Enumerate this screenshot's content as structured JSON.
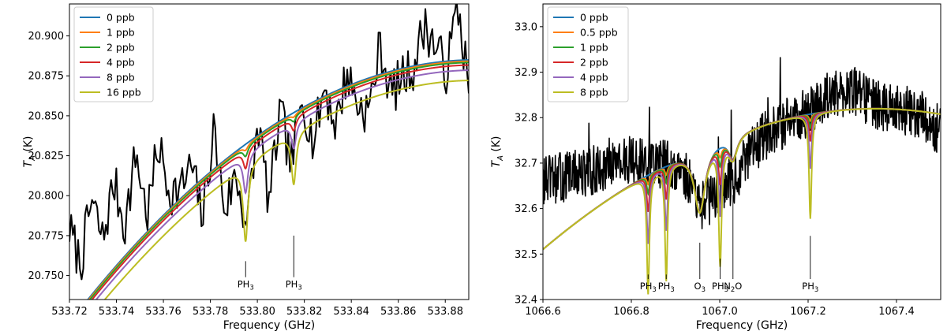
{
  "chart_data": [
    {
      "type": "line",
      "xlabel": "Frequency (GHz)",
      "ylabel_main": "T",
      "ylabel_sub": "A",
      "ylabel_unit": " (K)",
      "xlim": [
        533.72,
        533.89
      ],
      "ylim": [
        20.735,
        20.92
      ],
      "xticks": [
        533.72,
        533.74,
        533.76,
        533.78,
        533.8,
        533.82,
        533.84,
        533.86,
        533.88
      ],
      "xtick_labels": [
        "533.72",
        "533.74",
        "533.76",
        "533.78",
        "533.80",
        "533.82",
        "533.84",
        "533.86",
        "533.88"
      ],
      "yticks": [
        20.75,
        20.775,
        20.8,
        20.825,
        20.85,
        20.875,
        20.9
      ],
      "ytick_labels": [
        "20.750",
        "20.775",
        "20.800",
        "20.825",
        "20.850",
        "20.875",
        "20.900"
      ],
      "legend_position": "top-left",
      "baseline": {
        "a": 20.885,
        "b": 0.000235,
        "c": 533.893
      },
      "lines": [
        {
          "center": 533.795,
          "width": 0.0012
        },
        {
          "center": 533.8155,
          "width": 0.0012
        }
      ],
      "series": [
        {
          "name": "0 ppb",
          "color": "#1f77b4",
          "offset": 0,
          "depths": [
            0,
            0
          ]
        },
        {
          "name": "1 ppb",
          "color": "#ff7f0e",
          "offset": -0.0008,
          "depths": [
            0.003,
            0.002
          ]
        },
        {
          "name": "2 ppb",
          "color": "#2ca02c",
          "offset": -0.0016,
          "depths": [
            0.006,
            0.004
          ]
        },
        {
          "name": "4 ppb",
          "color": "#d62728",
          "offset": -0.0032,
          "depths": [
            0.012,
            0.008
          ]
        },
        {
          "name": "8 ppb",
          "color": "#9467bd",
          "offset": -0.0064,
          "depths": [
            0.024,
            0.016
          ]
        },
        {
          "name": "16 ppb",
          "color": "#bcbd22",
          "offset": -0.0128,
          "depths": [
            0.048,
            0.032
          ]
        }
      ],
      "observed": {
        "name": "observed",
        "color": "#000000",
        "x": [
          533.72,
          533.7247,
          533.7294,
          533.7342,
          533.7389,
          533.7436,
          533.7483,
          533.7531,
          533.7578,
          533.7625,
          533.7672,
          533.7719,
          533.7767,
          533.7814,
          533.7861,
          533.7908,
          533.7956,
          533.8003,
          533.805,
          533.8097,
          533.8144,
          533.8192,
          533.8239,
          533.8286,
          533.8333,
          533.8381,
          533.8428,
          533.8475,
          533.8522,
          533.8569,
          533.8617,
          533.8664,
          533.8711,
          533.8758,
          533.8806,
          533.8853,
          533.89
        ],
        "y": [
          20.779,
          20.757,
          20.797,
          20.772,
          20.809,
          20.781,
          20.827,
          20.787,
          20.832,
          20.803,
          20.803,
          20.819,
          20.786,
          20.842,
          20.791,
          20.813,
          20.781,
          20.846,
          20.795,
          20.853,
          20.819,
          20.862,
          20.833,
          20.869,
          20.844,
          20.877,
          20.857,
          20.853,
          20.894,
          20.864,
          20.874,
          20.88,
          20.907,
          20.893,
          20.878,
          20.92,
          20.868
        ]
      },
      "annotations": [
        {
          "x": 533.795,
          "text_main": "PH",
          "text_sub": "3",
          "y_top": 20.759,
          "y_bottom": 20.749
        },
        {
          "x": 533.8155,
          "text_main": "PH",
          "text_sub": "3",
          "y_top": 20.775,
          "y_bottom": 20.749
        }
      ]
    },
    {
      "type": "line",
      "xlabel": "Frequency (GHz)",
      "ylabel_main": "T",
      "ylabel_sub": "A",
      "ylabel_unit": " (K)",
      "xlim": [
        1066.6,
        1067.5
      ],
      "ylim": [
        32.4,
        33.05
      ],
      "xticks": [
        1066.6,
        1066.8,
        1067.0,
        1067.2,
        1067.4
      ],
      "xtick_labels": [
        "1066.6",
        "1066.8",
        "1067.0",
        "1067.2",
        "1067.4"
      ],
      "yticks": [
        32.4,
        32.5,
        32.6,
        32.7,
        32.8,
        32.9,
        33.0
      ],
      "ytick_labels": [
        "32.4",
        "32.5",
        "32.6",
        "32.7",
        "32.8",
        "32.9",
        "33.0"
      ],
      "legend_position": "top-left",
      "baseline": {
        "a": 32.82,
        "b": 0.55,
        "c": 1067.35
      },
      "lines": [
        {
          "center": 1066.838,
          "width": 0.0035
        },
        {
          "center": 1066.879,
          "width": 0.0035
        },
        {
          "center": 1066.955,
          "width": 0.015
        },
        {
          "center": 1067.001,
          "width": 0.004
        },
        {
          "center": 1067.03,
          "width": 0.012
        },
        {
          "center": 1067.205,
          "width": 0.0035
        }
      ],
      "series": [
        {
          "name": "0 ppb",
          "color": "#1f77b4",
          "depths": [
            0,
            0,
            0.14,
            0,
            0.05,
            0
          ]
        },
        {
          "name": "0.5 ppb",
          "color": "#ff7f0e",
          "depths": [
            0.02,
            0.018,
            0.14,
            0.02,
            0.05,
            0.015
          ]
        },
        {
          "name": "1 ppb",
          "color": "#2ca02c",
          "depths": [
            0.04,
            0.036,
            0.14,
            0.04,
            0.05,
            0.03
          ]
        },
        {
          "name": "2 ppb",
          "color": "#d62728",
          "depths": [
            0.08,
            0.072,
            0.14,
            0.08,
            0.05,
            0.06
          ]
        },
        {
          "name": "4 ppb",
          "color": "#9467bd",
          "depths": [
            0.15,
            0.14,
            0.14,
            0.15,
            0.05,
            0.12
          ]
        },
        {
          "name": "8 ppb",
          "color": "#bcbd22",
          "depths": [
            0.26,
            0.25,
            0.14,
            0.26,
            0.05,
            0.23
          ]
        }
      ],
      "observed": {
        "name": "observed",
        "color": "#000000",
        "x": [
          1066.6,
          1066.65,
          1066.7,
          1066.75,
          1066.8,
          1066.84,
          1066.88,
          1066.92,
          1066.955,
          1067.0,
          1067.03,
          1067.07,
          1067.1,
          1067.15,
          1067.2,
          1067.25,
          1067.3,
          1067.35,
          1067.4,
          1067.45,
          1067.5
        ],
        "y": [
          32.66,
          32.67,
          32.68,
          32.7,
          32.71,
          32.7,
          32.7,
          32.68,
          32.6,
          32.64,
          32.66,
          32.72,
          32.76,
          32.79,
          32.81,
          32.85,
          32.86,
          32.83,
          32.82,
          32.81,
          32.77
        ]
      },
      "noise_amplitude": 0.11,
      "annotations": [
        {
          "x": 1066.838,
          "text_main": "PH",
          "text_sub": "3",
          "y_top": 32.455,
          "y_bottom": 32.445
        },
        {
          "x": 1066.879,
          "text_main": "PH",
          "text_sub": "3",
          "y_top": 32.455,
          "y_bottom": 32.445
        },
        {
          "x": 1066.955,
          "text_main": "O",
          "text_sub": "3",
          "y_top": 32.525,
          "y_bottom": 32.445
        },
        {
          "x": 1067.001,
          "text_main": "PH",
          "text_sub": "3",
          "y_top": 32.49,
          "y_bottom": 32.445
        },
        {
          "x": 1067.03,
          "text_main": "N",
          "text_sub": "2",
          "text_after": "O",
          "y_top": 32.63,
          "y_bottom": 32.445
        },
        {
          "x": 1067.205,
          "text_main": "PH",
          "text_sub": "3",
          "y_top": 32.54,
          "y_bottom": 32.445
        }
      ]
    }
  ]
}
